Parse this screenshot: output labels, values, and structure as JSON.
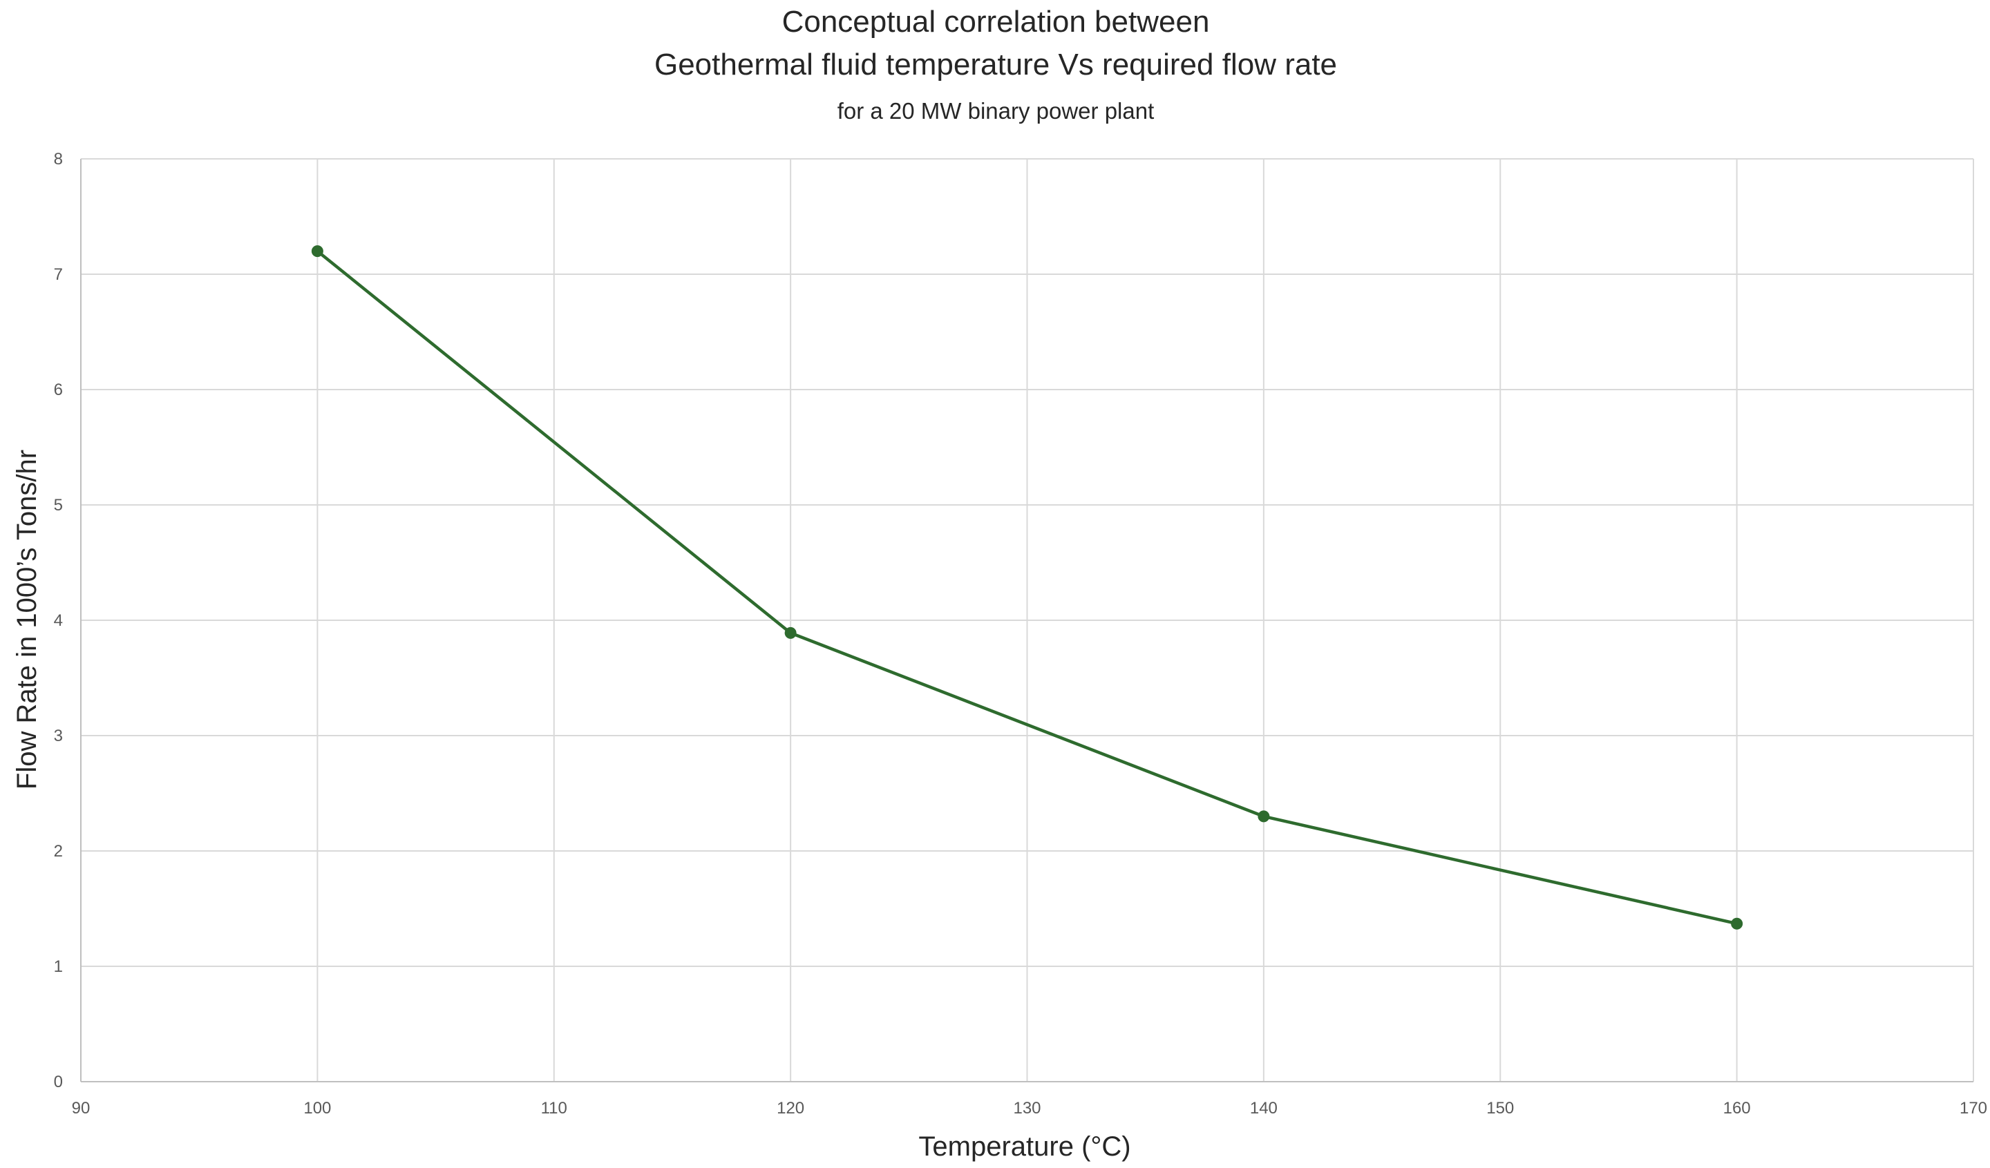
{
  "chart_data": {
    "type": "line",
    "title_lines": [
      "Conceptual correlation between",
      "Geothermal fluid temperature Vs required flow rate"
    ],
    "subtitle": "for a 20 MW binary power plant",
    "xlabel": "Temperature (°C)",
    "ylabel": "Flow  Rate in 1000’s Tons/hr",
    "xlim": [
      90,
      170
    ],
    "ylim": [
      0,
      8
    ],
    "x_ticks": [
      90,
      100,
      110,
      120,
      130,
      140,
      150,
      160,
      170
    ],
    "y_ticks": [
      0,
      1,
      2,
      3,
      4,
      5,
      6,
      7,
      8
    ],
    "grid": true,
    "legend": "none",
    "series": [
      {
        "x": [
          100,
          120,
          140,
          160
        ],
        "y": [
          7.2,
          3.89,
          2.3,
          1.37
        ],
        "color": "#2e6b2e",
        "marker": "circle"
      }
    ]
  }
}
